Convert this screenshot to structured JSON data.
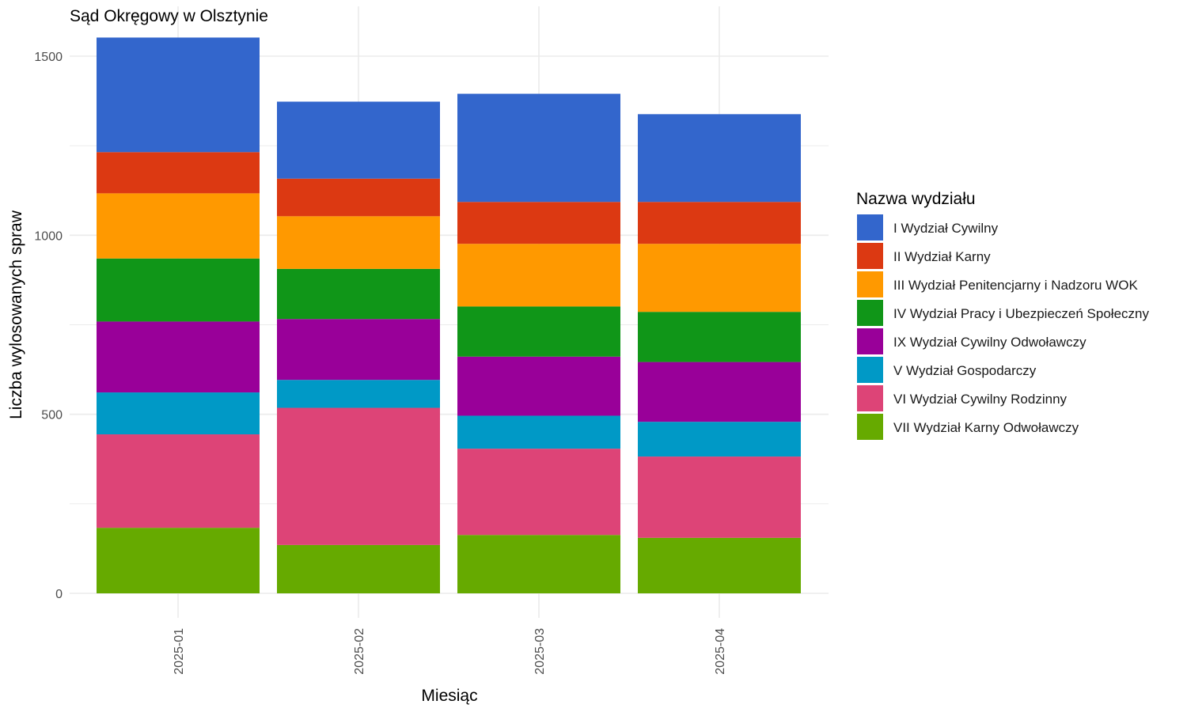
{
  "chart_data": {
    "type": "bar",
    "stacked": true,
    "title": "Sąd Okręgowy w Olsztynie",
    "xlabel": "Miesiąc",
    "ylabel": "Liczba wylosowanych spraw",
    "categories": [
      "2025-01",
      "2025-02",
      "2025-03",
      "2025-04"
    ],
    "ylim": [
      0,
      1600
    ],
    "yticks": [
      0,
      500,
      1000,
      1500
    ],
    "grid": true,
    "legend_position": "right",
    "legend_title": "Nazwa wydziału",
    "series": [
      {
        "name": "I Wydział Cywilny",
        "color": "#3366CC",
        "values": [
          320,
          215,
          302,
          245
        ]
      },
      {
        "name": "II Wydział Karny",
        "color": "#DC3912",
        "values": [
          115,
          105,
          117,
          117
        ]
      },
      {
        "name": "III Wydział Penitencjarny i Nadzoru WOK",
        "color": "#FF9900",
        "values": [
          182,
          147,
          175,
          190
        ]
      },
      {
        "name": "IV Wydział Pracy i Ubezpieczeń Społeczny",
        "color": "#109618",
        "values": [
          176,
          140,
          140,
          140
        ]
      },
      {
        "name": "IX Wydział Cywilny Odwoławczy",
        "color": "#990099",
        "values": [
          198,
          170,
          165,
          167
        ]
      },
      {
        "name": "V Wydział Gospodarczy",
        "color": "#0099C6",
        "values": [
          117,
          78,
          92,
          97
        ]
      },
      {
        "name": "VI Wydział Cywilny Rodzinny",
        "color": "#DD4477",
        "values": [
          261,
          383,
          241,
          227
        ]
      },
      {
        "name": "VII Wydział Karny Odwoławczy",
        "color": "#66AA00",
        "values": [
          183,
          135,
          163,
          155
        ]
      }
    ]
  }
}
